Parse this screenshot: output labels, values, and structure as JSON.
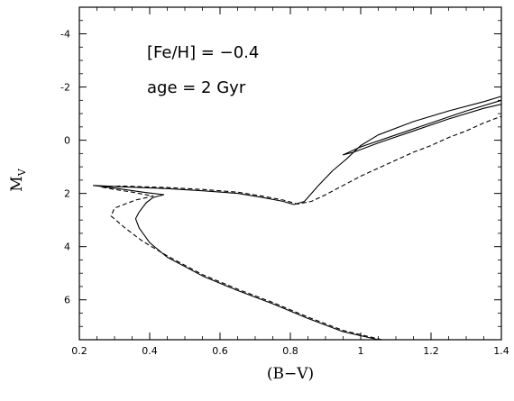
{
  "chart_data": {
    "type": "line",
    "xlabel": "(B−V)",
    "ylabel_main": "M",
    "ylabel_sub": "V",
    "xlim": [
      0.2,
      1.4
    ],
    "ylim": [
      7.5,
      -5.0
    ],
    "y_inverted": true,
    "x_ticks": [
      0.2,
      0.4,
      0.6,
      0.8,
      1.0,
      1.2,
      1.4
    ],
    "x_tick_labels": [
      "0.2",
      "0.4",
      "0.6",
      "0.8",
      "1",
      "1.2",
      "1.4"
    ],
    "y_ticks": [
      -4,
      -2,
      0,
      2,
      4,
      6
    ],
    "y_tick_labels": [
      "-4",
      "-2",
      "0",
      "2",
      "4",
      "6"
    ],
    "grid": false,
    "annotations": [
      "[Fe/H] = −0.4",
      "age = 2 Gyr"
    ],
    "series": [
      {
        "style": "solid",
        "points": [
          [
            1.05,
            7.5
          ],
          [
            0.95,
            7.2
          ],
          [
            0.85,
            6.7
          ],
          [
            0.75,
            6.15
          ],
          [
            0.65,
            5.65
          ],
          [
            0.55,
            5.1
          ],
          [
            0.5,
            4.75
          ],
          [
            0.45,
            4.4
          ],
          [
            0.4,
            3.85
          ],
          [
            0.37,
            3.3
          ],
          [
            0.36,
            2.95
          ],
          [
            0.37,
            2.7
          ],
          [
            0.39,
            2.35
          ],
          [
            0.41,
            2.15
          ],
          [
            0.44,
            2.05
          ],
          [
            0.38,
            1.95
          ],
          [
            0.3,
            1.8
          ],
          [
            0.24,
            1.7
          ],
          [
            0.32,
            1.75
          ],
          [
            0.45,
            1.82
          ],
          [
            0.55,
            1.9
          ],
          [
            0.65,
            2.0
          ],
          [
            0.72,
            2.15
          ],
          [
            0.78,
            2.3
          ],
          [
            0.81,
            2.42
          ],
          [
            0.84,
            2.3
          ],
          [
            0.88,
            1.7
          ],
          [
            0.92,
            1.15
          ],
          [
            0.96,
            0.7
          ],
          [
            1.0,
            0.2
          ],
          [
            1.05,
            -0.2
          ],
          [
            1.15,
            -0.7
          ],
          [
            1.25,
            -1.1
          ],
          [
            1.35,
            -1.45
          ],
          [
            1.4,
            -1.65
          ]
        ]
      },
      {
        "style": "solid",
        "points": [
          [
            1.4,
            -1.5
          ],
          [
            1.3,
            -1.1
          ],
          [
            1.2,
            -0.65
          ],
          [
            1.1,
            -0.2
          ],
          [
            1.0,
            0.25
          ],
          [
            0.95,
            0.55
          ],
          [
            0.98,
            0.45
          ],
          [
            1.05,
            0.1
          ],
          [
            1.15,
            -0.35
          ],
          [
            1.25,
            -0.8
          ],
          [
            1.35,
            -1.2
          ],
          [
            1.4,
            -1.35
          ]
        ]
      },
      {
        "style": "dashed",
        "points": [
          [
            1.06,
            7.5
          ],
          [
            0.95,
            7.15
          ],
          [
            0.85,
            6.65
          ],
          [
            0.75,
            6.1
          ],
          [
            0.65,
            5.6
          ],
          [
            0.55,
            5.05
          ],
          [
            0.45,
            4.35
          ],
          [
            0.38,
            3.8
          ],
          [
            0.33,
            3.3
          ],
          [
            0.29,
            2.85
          ],
          [
            0.3,
            2.55
          ],
          [
            0.36,
            2.25
          ],
          [
            0.41,
            2.1
          ],
          [
            0.35,
            1.95
          ],
          [
            0.3,
            1.85
          ],
          [
            0.26,
            1.75
          ],
          [
            0.32,
            1.72
          ],
          [
            0.45,
            1.78
          ],
          [
            0.55,
            1.85
          ],
          [
            0.65,
            1.95
          ],
          [
            0.72,
            2.1
          ],
          [
            0.78,
            2.25
          ],
          [
            0.82,
            2.4
          ],
          [
            0.86,
            2.3
          ],
          [
            0.9,
            2.05
          ],
          [
            0.95,
            1.7
          ],
          [
            1.0,
            1.35
          ],
          [
            1.05,
            1.05
          ],
          [
            1.1,
            0.75
          ],
          [
            1.15,
            0.45
          ],
          [
            1.2,
            0.2
          ],
          [
            1.25,
            -0.1
          ],
          [
            1.3,
            -0.35
          ],
          [
            1.35,
            -0.65
          ],
          [
            1.4,
            -0.9
          ]
        ]
      }
    ]
  }
}
